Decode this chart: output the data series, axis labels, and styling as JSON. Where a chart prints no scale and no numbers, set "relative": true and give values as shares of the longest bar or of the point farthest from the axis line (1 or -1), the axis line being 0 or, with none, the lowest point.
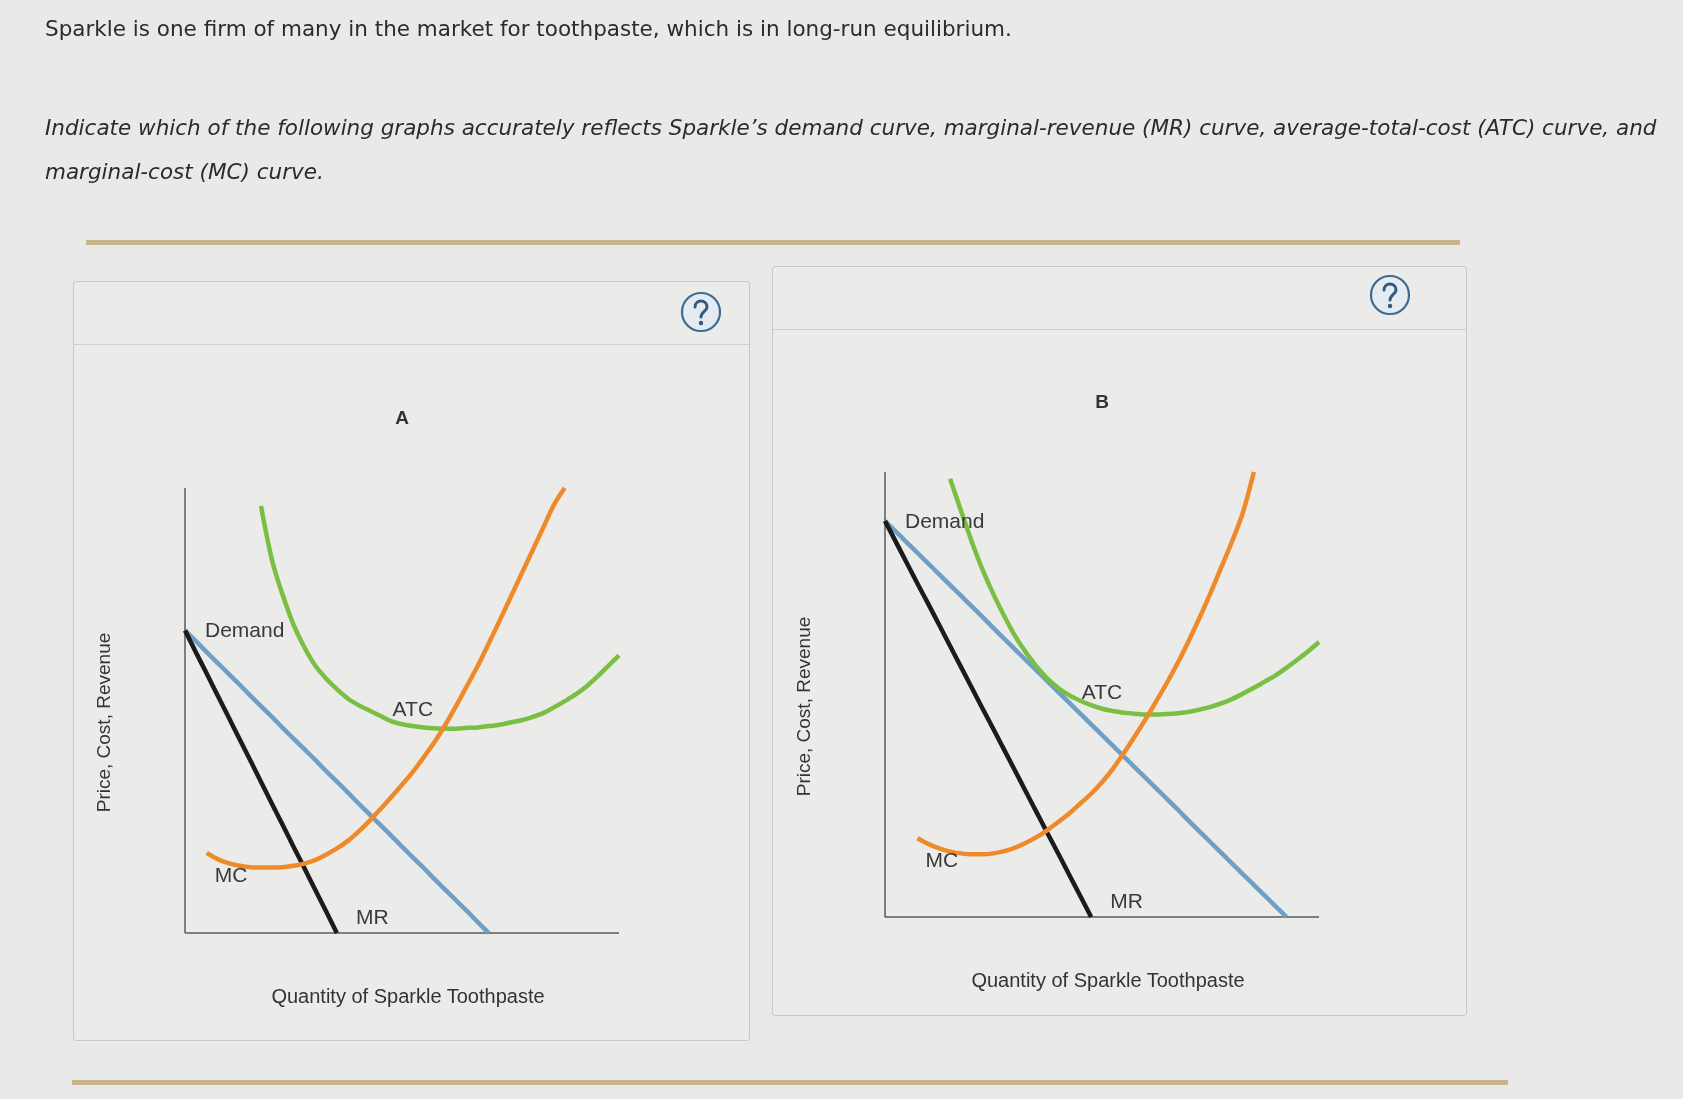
{
  "chart_data": [
    {
      "type": "other",
      "annotations": [
        "Sparkle is one firm of many in the market for toothpaste, which is in long-run equilibrium.",
        "Indicate which of the following graphs accurately reflects Sparkle’s demand curve, marginal-revenue (MR) curve, average-total-cost (ATC) curve, and marginal-cost (MC) curve."
      ]
    },
    {
      "type": "line",
      "title": "A",
      "xlabel": "Quantity of Sparkle Toothpaste",
      "ylabel": "Price, Cost, Revenue",
      "relative": true,
      "categories": [
        null,
        null,
        null,
        null,
        null,
        null,
        null,
        null,
        null,
        null,
        null,
        null,
        null,
        null,
        null,
        null,
        null,
        null,
        null,
        null,
        null,
        null,
        null,
        null,
        null,
        null,
        null,
        null,
        null,
        null,
        null,
        null,
        null,
        null,
        null,
        null,
        null,
        null,
        null,
        null,
        null
      ],
      "series": [
        {
          "name": "Demand",
          "color": "#6f9fc6",
          "values": [
            0.68,
            0.656,
            0.631,
            0.607,
            0.583,
            0.559,
            0.534,
            0.51,
            0.486,
            0.461,
            0.437,
            0.413,
            0.389,
            0.364,
            0.34,
            0.316,
            0.291,
            0.267,
            0.243,
            0.219,
            0.194,
            0.17,
            0.146,
            0.121,
            0.097,
            0.073,
            0.049,
            0.024,
            0,
            null,
            null,
            null,
            null,
            null,
            null,
            null,
            null,
            null,
            null,
            null,
            null
          ]
        },
        {
          "name": "MR",
          "color": "#1e1a1c",
          "values": [
            0.68,
            0.631,
            0.583,
            0.534,
            0.486,
            0.437,
            0.389,
            0.34,
            0.291,
            0.243,
            0.194,
            0.146,
            0.097,
            0.049,
            0,
            null,
            null,
            null,
            null,
            null,
            null,
            null,
            null,
            null,
            null,
            null,
            null,
            null,
            null,
            null,
            null,
            null,
            null,
            null,
            null,
            null,
            null,
            null,
            null,
            null,
            null
          ]
        },
        {
          "name": "ATC",
          "color": "#79bf43",
          "values": [
            null,
            null,
            null,
            null,
            null,
            null,
            null,
            0.96,
            0.84,
            0.76,
            0.693,
            0.642,
            0.601,
            0.572,
            0.548,
            0.527,
            0.512,
            0.5,
            0.488,
            0.476,
            0.469,
            0.465,
            0.462,
            0.46,
            0.459,
            0.459,
            0.461,
            0.462,
            0.465,
            0.468,
            0.473,
            0.478,
            0.485,
            0.494,
            0.507,
            0.521,
            0.536,
            0.554,
            0.576,
            0.6,
            0.624
          ]
        },
        {
          "name": "MC",
          "color": "#ee8a2a",
          "values": [
            null,
            null,
            0.18,
            0.166,
            0.157,
            0.151,
            0.148,
            0.147,
            0.147,
            0.148,
            0.151,
            0.156,
            0.164,
            0.176,
            0.19,
            0.207,
            0.228,
            0.252,
            0.278,
            0.305,
            0.333,
            0.362,
            0.395,
            0.429,
            0.468,
            0.511,
            0.556,
            0.601,
            0.651,
            0.702,
            0.754,
            0.806,
            0.858,
            0.91,
            0.962,
            1,
            null,
            null,
            null,
            null,
            null
          ]
        }
      ]
    },
    {
      "type": "line",
      "title": "B",
      "xlabel": "Quantity of Sparkle Toothpaste",
      "ylabel": "Price, Cost, Revenue",
      "relative": true,
      "categories": [
        null,
        null,
        null,
        null,
        null,
        null,
        null,
        null,
        null,
        null,
        null,
        null,
        null,
        null,
        null,
        null,
        null,
        null,
        null,
        null,
        null,
        null,
        null,
        null,
        null,
        null,
        null,
        null,
        null,
        null,
        null,
        null,
        null,
        null,
        null,
        null,
        null,
        null,
        null,
        null,
        null
      ],
      "series": [
        {
          "name": "Demand",
          "color": "#6f9fc6",
          "values": [
            0.89,
            0.866,
            0.842,
            0.818,
            0.794,
            0.77,
            0.746,
            0.722,
            0.698,
            0.674,
            0.649,
            0.625,
            0.601,
            0.577,
            0.553,
            0.529,
            0.505,
            0.481,
            0.457,
            0.433,
            0.409,
            0.385,
            0.361,
            0.337,
            0.313,
            0.289,
            0.265,
            0.241,
            0.216,
            0.192,
            0.168,
            0.144,
            0.12,
            0.096,
            0.072,
            0.048,
            0.024,
            0,
            null,
            null,
            null
          ]
        },
        {
          "name": "MR",
          "color": "#1e1a1c",
          "values": [
            0.89,
            0.843,
            0.796,
            0.749,
            0.703,
            0.656,
            0.609,
            0.562,
            0.515,
            0.468,
            0.422,
            0.375,
            0.328,
            0.281,
            0.234,
            0.187,
            0.141,
            0.094,
            0.047,
            0,
            null,
            null,
            null,
            null,
            null,
            null,
            null,
            null,
            null,
            null,
            null,
            null,
            null,
            null,
            null,
            null,
            null,
            null,
            null,
            null,
            null
          ]
        },
        {
          "name": "ATC",
          "color": "#79bf43",
          "values": [
            null,
            null,
            null,
            null,
            null,
            null,
            0.985,
            0.913,
            0.843,
            0.78,
            0.725,
            0.676,
            0.631,
            0.594,
            0.562,
            0.535,
            0.514,
            0.498,
            0.486,
            0.476,
            0.468,
            0.463,
            0.459,
            0.457,
            0.455,
            0.455,
            0.456,
            0.458,
            0.461,
            0.466,
            0.472,
            0.48,
            0.49,
            0.502,
            0.515,
            0.529,
            0.543,
            0.56,
            0.578,
            0.597,
            0.618
          ]
        },
        {
          "name": "MC",
          "color": "#ee8a2a",
          "values": [
            null,
            null,
            null,
            0.177,
            0.164,
            0.154,
            0.147,
            0.143,
            0.141,
            0.141,
            0.143,
            0.148,
            0.156,
            0.167,
            0.18,
            0.196,
            0.214,
            0.233,
            0.255,
            0.277,
            0.303,
            0.333,
            0.368,
            0.405,
            0.444,
            0.485,
            0.527,
            0.572,
            0.621,
            0.673,
            0.728,
            0.786,
            0.845,
            0.91,
            1,
            null,
            null,
            null,
            null,
            null,
            null
          ]
        }
      ]
    }
  ]
}
